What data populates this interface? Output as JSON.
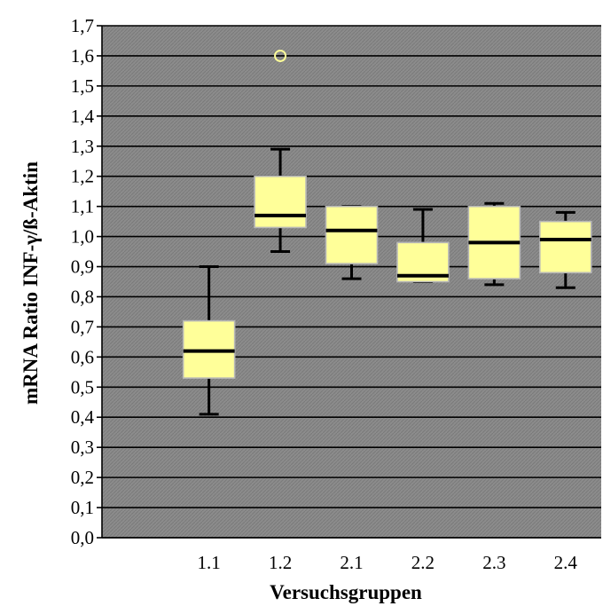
{
  "chart_data": {
    "type": "boxplot",
    "xlabel": "Versuchsgruppen",
    "ylabel": "mRNA Ratio INF-γ/ß-Aktin",
    "ylim": [
      0,
      1.7
    ],
    "y_ticks": [
      "0,0",
      "0,1",
      "0,2",
      "0,3",
      "0,4",
      "0,5",
      "0,6",
      "0,7",
      "0,8",
      "0,9",
      "1,0",
      "1,1",
      "1,2",
      "1,3",
      "1,4",
      "1,5",
      "1,6",
      "1,7"
    ],
    "grid": true,
    "categories": [
      "1.1",
      "1.2",
      "2.1",
      "2.2",
      "2.3",
      "2.4"
    ],
    "boxes": [
      {
        "category": "1.1",
        "whisker_low": 0.41,
        "q1": 0.53,
        "median": 0.62,
        "q3": 0.72,
        "whisker_high": 0.9,
        "outliers": []
      },
      {
        "category": "1.2",
        "whisker_low": 0.95,
        "q1": 1.03,
        "median": 1.07,
        "q3": 1.2,
        "whisker_high": 1.29,
        "outliers": [
          1.6
        ]
      },
      {
        "category": "2.1",
        "whisker_low": 0.86,
        "q1": 0.91,
        "median": 1.02,
        "q3": 1.1,
        "whisker_high": 1.1,
        "outliers": []
      },
      {
        "category": "2.2",
        "whisker_low": 0.85,
        "q1": 0.85,
        "median": 0.87,
        "q3": 0.98,
        "whisker_high": 1.09,
        "outliers": []
      },
      {
        "category": "2.3",
        "whisker_low": 0.84,
        "q1": 0.86,
        "median": 0.98,
        "q3": 1.1,
        "whisker_high": 1.11,
        "outliers": []
      },
      {
        "category": "2.4",
        "whisker_low": 0.83,
        "q1": 0.88,
        "median": 0.99,
        "q3": 1.05,
        "whisker_high": 1.08,
        "outliers": []
      }
    ],
    "colors": {
      "plot_background": "#8c8c8c",
      "gridline": "#000000",
      "box_fill": "#ffff99",
      "box_edge": "#b7b7b7",
      "median": "#000000",
      "whisker": "#000000",
      "outlier": "#ffff99"
    }
  }
}
